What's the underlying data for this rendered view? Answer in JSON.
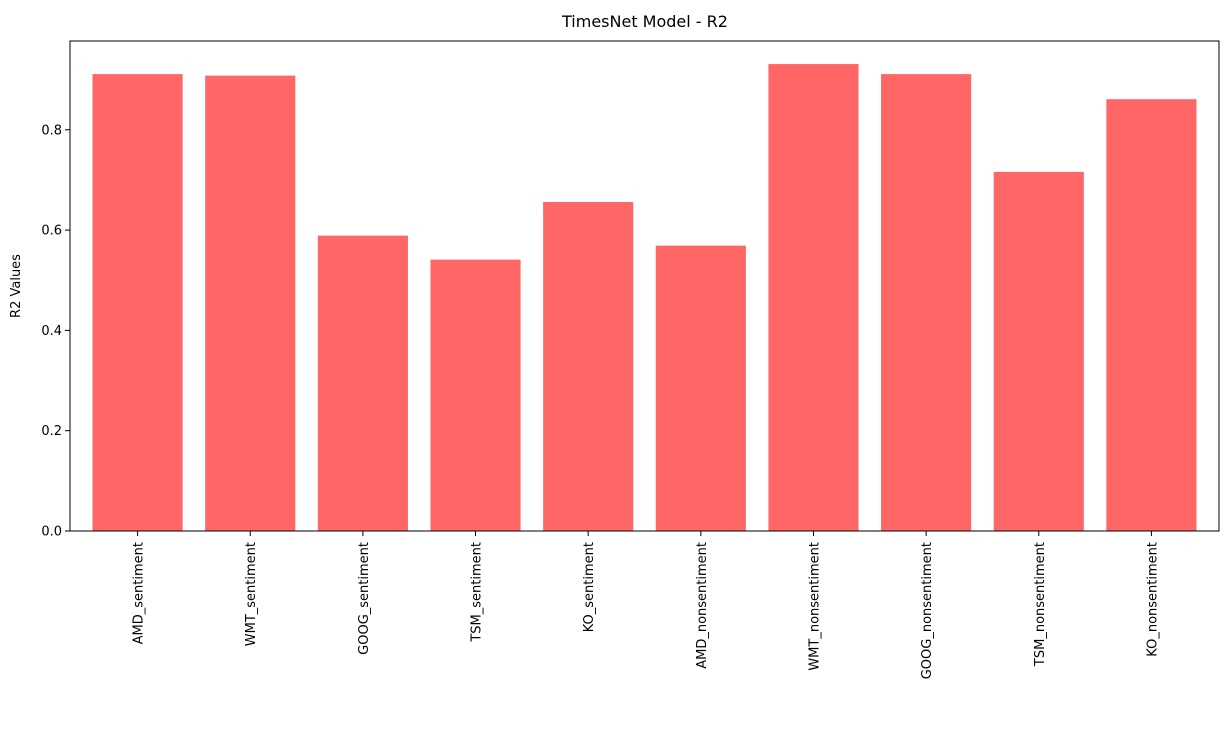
{
  "chart_data": {
    "type": "bar",
    "title": "TimesNet Model - R2",
    "xlabel": "",
    "ylabel": "R2 Values",
    "categories": [
      "AMD_sentiment",
      "WMT_sentiment",
      "GOOG_sentiment",
      "TSM_sentiment",
      "KO_sentiment",
      "AMD_nonsentiment",
      "WMT_nonsentiment",
      "GOOG_nonsentiment",
      "TSM_nonsentiment",
      "KO_nonsentiment"
    ],
    "values": [
      0.911,
      0.908,
      0.589,
      0.541,
      0.656,
      0.569,
      0.931,
      0.911,
      0.716,
      0.861
    ],
    "ylim": [
      0,
      0.977
    ],
    "yticks": [
      0.0,
      0.2,
      0.4,
      0.6,
      0.8
    ],
    "ytick_labels": [
      "0.0",
      "0.2",
      "0.4",
      "0.6",
      "0.8"
    ],
    "bar_color": "#ff6666",
    "grid": false,
    "legend": "none"
  }
}
